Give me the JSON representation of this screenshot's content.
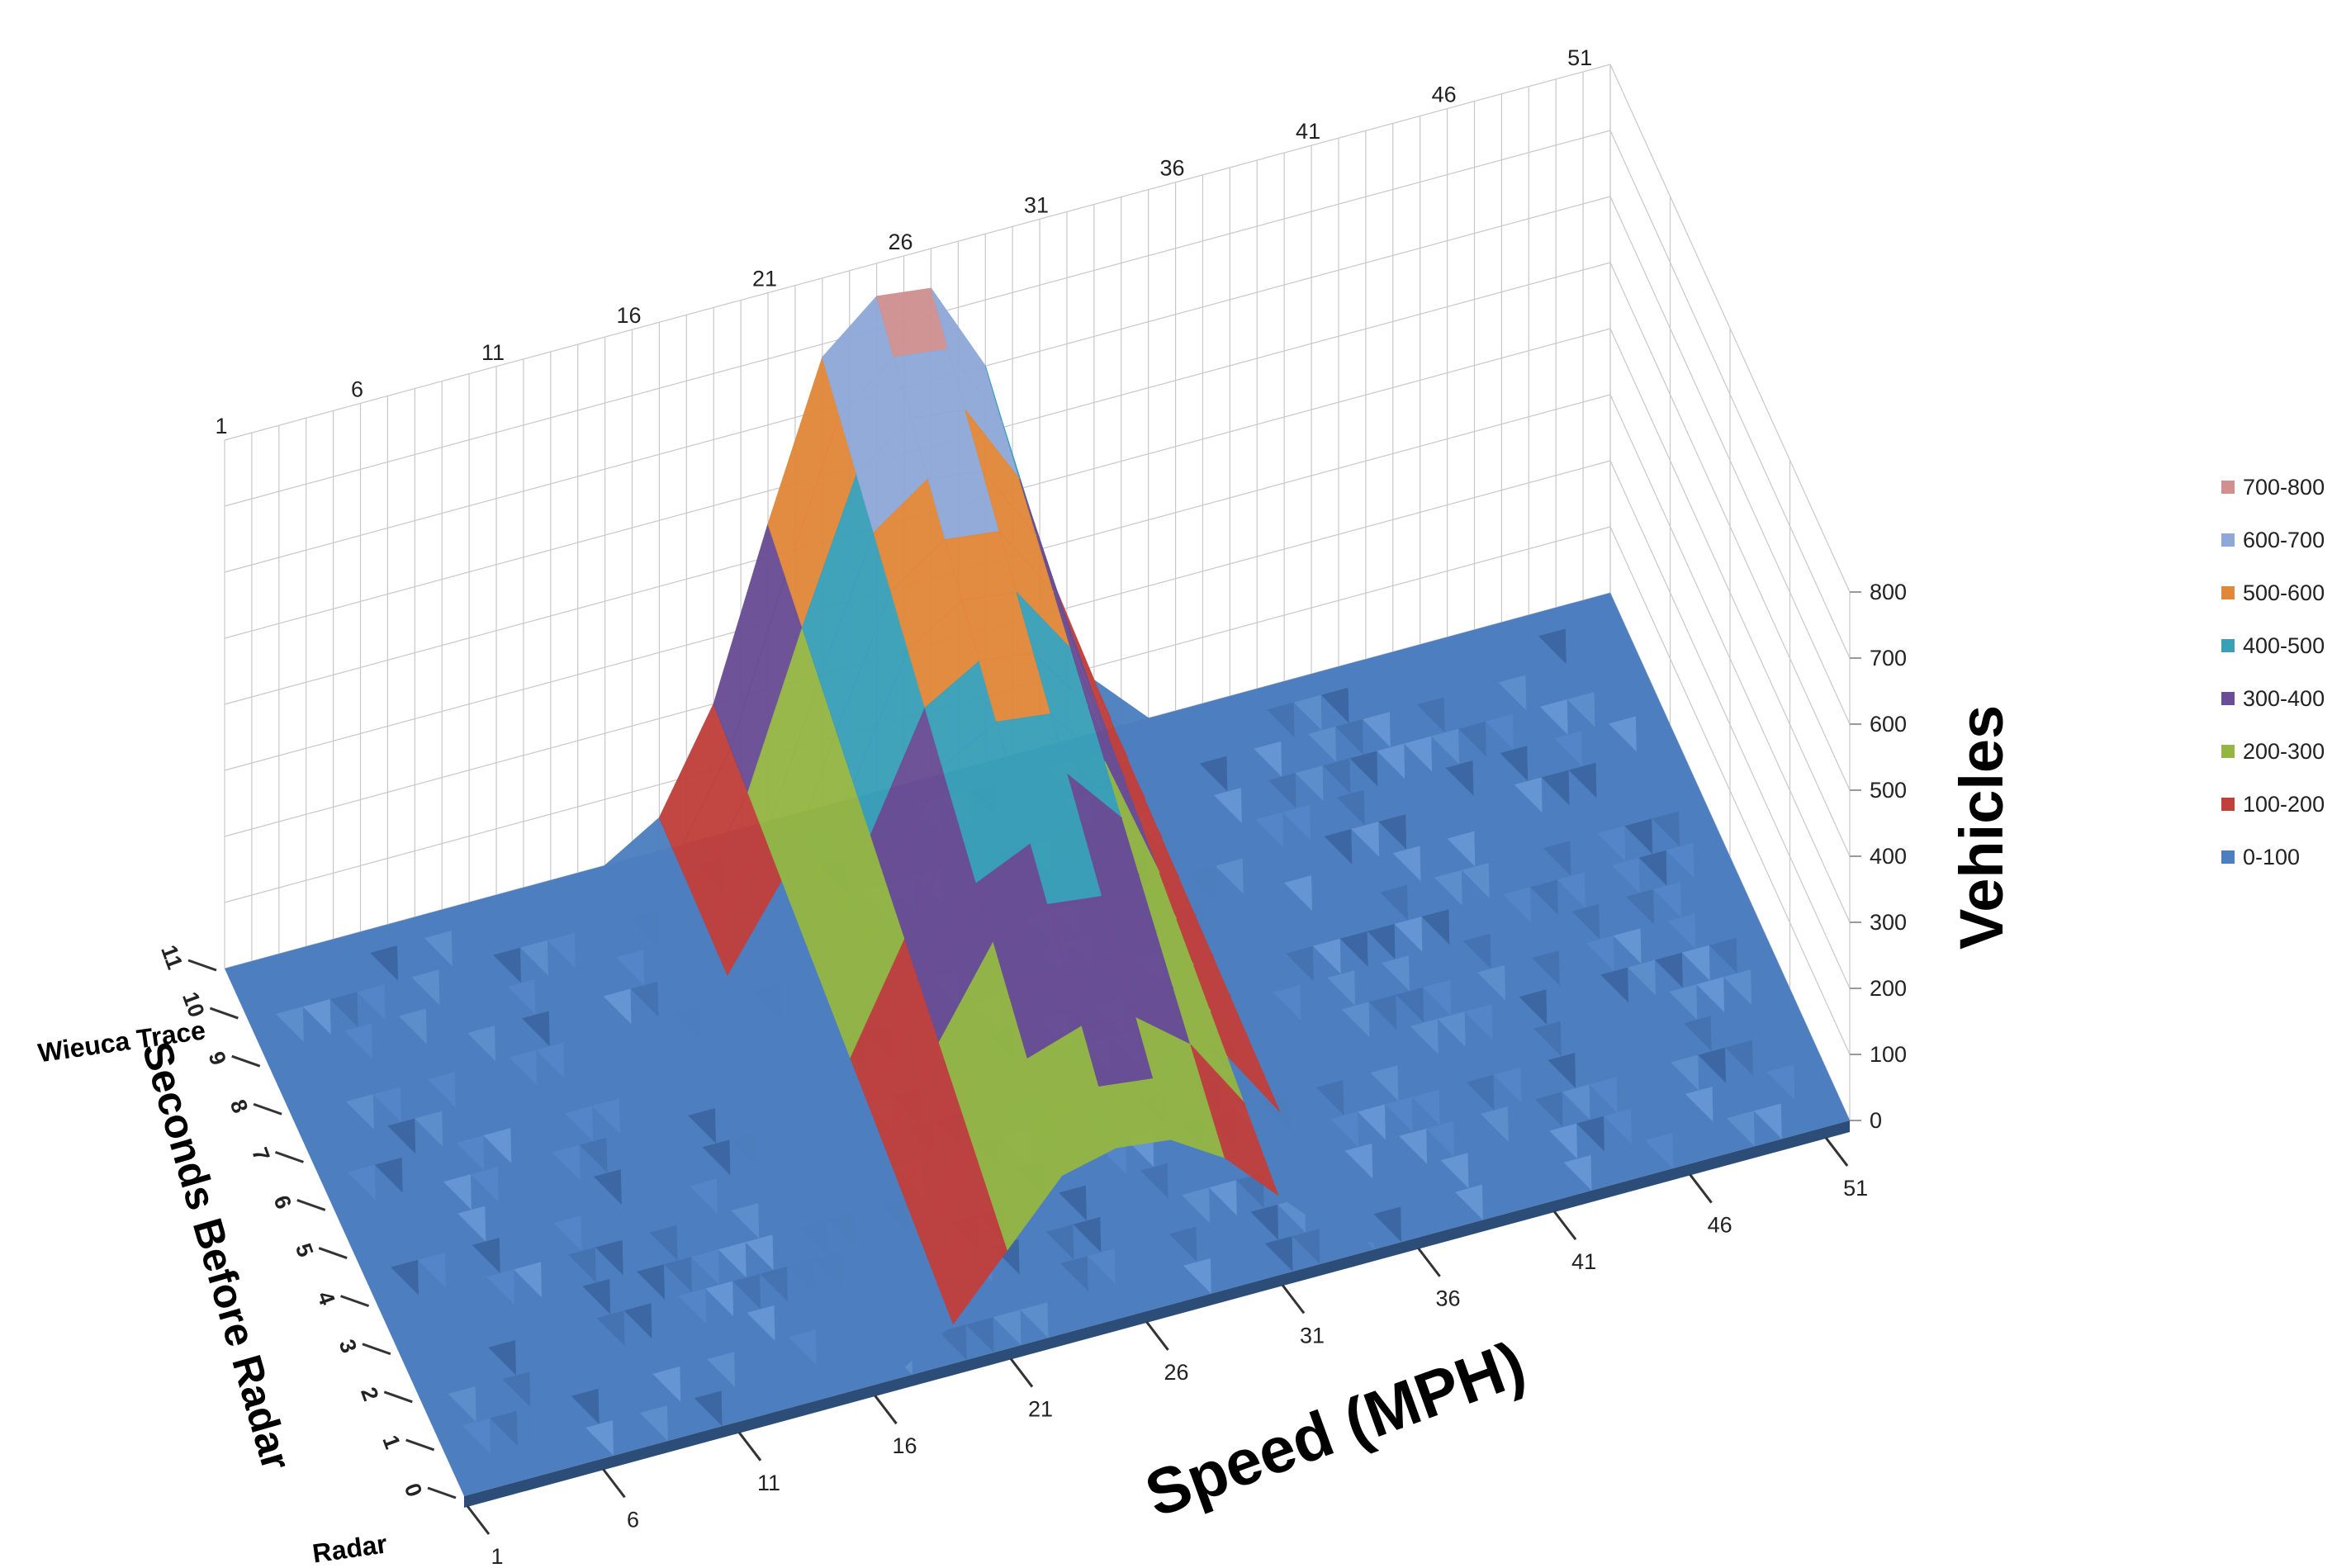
{
  "chart_data": {
    "type": "surface",
    "title": "",
    "xlabel": "Speed (MPH)",
    "ylabel": "Seconds Before Radar",
    "zlabel": "Vehicles",
    "x_ticks": [
      "1",
      "6",
      "11",
      "16",
      "21",
      "26",
      "31",
      "36",
      "41",
      "46",
      "51"
    ],
    "x_range": [
      1,
      52
    ],
    "y_ticks": [
      "0",
      "1",
      "2",
      "3",
      "4",
      "5",
      "6",
      "7",
      "8",
      "9",
      "10",
      "11"
    ],
    "y_end_labels": [
      "Radar",
      "Wieuca Trace"
    ],
    "z_ticks": [
      "0",
      "100",
      "200",
      "300",
      "400",
      "500",
      "600",
      "700",
      "800"
    ],
    "zlim": [
      0,
      800
    ],
    "legend_position": "right",
    "bands": [
      {
        "name": "700-800",
        "color": "#d09090"
      },
      {
        "name": "600-700",
        "color": "#8fa8d8"
      },
      {
        "name": "500-600",
        "color": "#e0883a"
      },
      {
        "name": "400-500",
        "color": "#3aa0b8"
      },
      {
        "name": "300-400",
        "color": "#6a4d94"
      },
      {
        "name": "200-300",
        "color": "#94b644"
      },
      {
        "name": "100-200",
        "color": "#c0403c"
      },
      {
        "name": "0-100",
        "color": "#4d7fc0"
      }
    ],
    "peak_profile": {
      "speed_mph": [
        15,
        17,
        19,
        21,
        23,
        25,
        27,
        29,
        31,
        33,
        35
      ],
      "vehicles_at_wieuca_trace": [
        0,
        50,
        200,
        450,
        680,
        750,
        740,
        600,
        300,
        80,
        0
      ],
      "vehicles_at_radar": [
        0,
        10,
        60,
        150,
        240,
        260,
        250,
        200,
        120,
        40,
        0
      ]
    }
  }
}
